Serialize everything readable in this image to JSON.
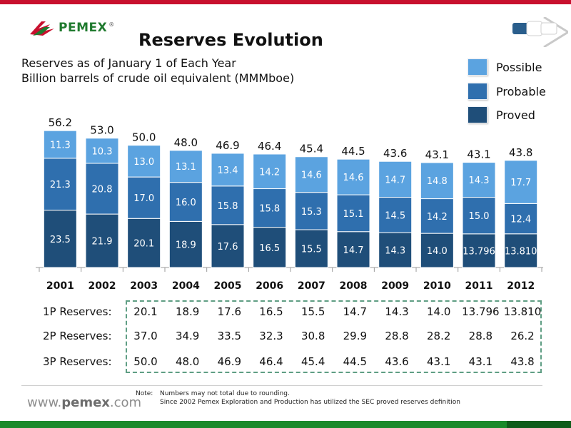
{
  "header": {
    "brand": "PEMEX",
    "brand_mark": "®",
    "title": "Reserves Evolution",
    "brand_color": "#1f7a2e",
    "accent_color": "#c8102e"
  },
  "chart_data": {
    "type": "bar",
    "stacked": true,
    "title": "Reserves Evolution",
    "subtitle": [
      "Reserves as of January 1 of Each Year",
      "Billion barrels of crude oil equivalent (MMMboe)"
    ],
    "categories": [
      "2001",
      "2002",
      "2003",
      "2004",
      "2005",
      "2006",
      "2007",
      "2008",
      "2009",
      "2010",
      "2011",
      "2012"
    ],
    "series": [
      {
        "name": "Proved",
        "color": "#1f4e79",
        "values": [
          23.5,
          21.9,
          20.1,
          18.9,
          17.6,
          16.5,
          15.5,
          14.7,
          14.3,
          14.0,
          13.796,
          13.81
        ],
        "labels": [
          "23.5",
          "21.9",
          "20.1",
          "18.9",
          "17.6",
          "16.5",
          "15.5",
          "14.7",
          "14.3",
          "14.0",
          "13.796",
          "13.810"
        ]
      },
      {
        "name": "Probable",
        "color": "#2f6fae",
        "values": [
          21.3,
          20.8,
          17.0,
          16.0,
          15.8,
          15.8,
          15.3,
          15.1,
          14.5,
          14.2,
          15.0,
          12.4
        ],
        "labels": [
          "21.3",
          "20.8",
          "17.0",
          "16.0",
          "15.8",
          "15.8",
          "15.3",
          "15.1",
          "14.5",
          "14.2",
          "15.0",
          "12.4"
        ]
      },
      {
        "name": "Possible",
        "color": "#5ba3e0",
        "values": [
          11.3,
          10.3,
          13.0,
          13.1,
          13.4,
          14.2,
          14.6,
          14.6,
          14.7,
          14.8,
          14.3,
          17.7
        ],
        "labels": [
          "11.3",
          "10.3",
          "13.0",
          "13.1",
          "13.4",
          "14.2",
          "14.6",
          "14.6",
          "14.7",
          "14.8",
          "14.3",
          "17.7"
        ]
      }
    ],
    "totals": [
      "56.2",
      "53.0",
      "50.0",
      "48.0",
      "46.9",
      "46.4",
      "45.4",
      "44.5",
      "43.6",
      "43.1",
      "43.1",
      "43.8"
    ],
    "ylim": [
      0,
      60
    ],
    "grid": false,
    "legend_position": "top-right",
    "legend": [
      "Possible",
      "Probable",
      "Proved"
    ]
  },
  "reserves_table": {
    "rows": [
      {
        "label": "1P Reserves:",
        "values": [
          "20.1",
          "18.9",
          "17.6",
          "16.5",
          "15.5",
          "14.7",
          "14.3",
          "14.0",
          "13.796",
          "13.810"
        ]
      },
      {
        "label": "2P Reserves:",
        "values": [
          "37.0",
          "34.9",
          "33.5",
          "32.3",
          "30.8",
          "29.9",
          "28.8",
          "28.2",
          "28.8",
          "26.2"
        ]
      },
      {
        "label": "3P Reserves:",
        "values": [
          "50.0",
          "48.0",
          "46.9",
          "46.4",
          "45.4",
          "44.5",
          "43.6",
          "43.1",
          "43.1",
          "43.8"
        ]
      }
    ]
  },
  "footer": {
    "website_prefix": "www.",
    "website_brand": "pemex",
    "website_suffix": ".com",
    "note_label": "Note:",
    "note_lines": [
      "Numbers may not total due to rounding.",
      "Since 2002 Pemex Exploration and Production has utilized the SEC proved reserves definition"
    ]
  }
}
